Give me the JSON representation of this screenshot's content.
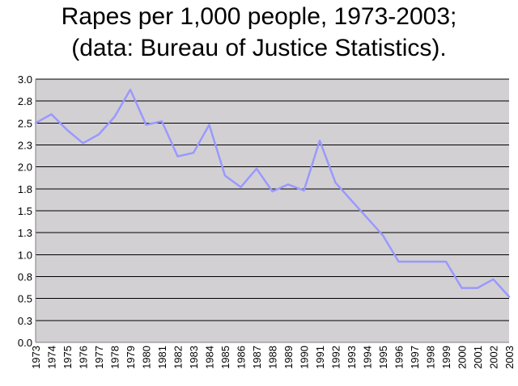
{
  "chart_data": {
    "type": "line",
    "title_lines": [
      "Rapes per 1,000 people, 1973-2003;",
      "(data: Bureau of Justice Statistics)."
    ],
    "xlabel": "",
    "ylabel": "",
    "x": [
      1973,
      1974,
      1975,
      1976,
      1977,
      1978,
      1979,
      1980,
      1981,
      1982,
      1983,
      1984,
      1985,
      1986,
      1987,
      1988,
      1989,
      1990,
      1991,
      1992,
      1993,
      1994,
      1995,
      1996,
      1997,
      1998,
      1999,
      2000,
      2001,
      2002,
      2003
    ],
    "x_tick_labels": [
      "1973",
      "1974",
      "1975",
      "1976",
      "1977",
      "1978",
      "1979",
      "1980",
      "1981",
      "1982",
      "1983",
      "1984",
      "1985",
      "1986",
      "1987",
      "1988",
      "1989",
      "1990",
      "1991",
      "1992",
      "1993",
      "1994",
      "1995",
      "1996",
      "1997",
      "1998",
      "1999",
      "2000",
      "2001",
      "2002",
      "2003"
    ],
    "y_tick_values": [
      0.0,
      0.25,
      0.5,
      0.75,
      1.0,
      1.25,
      1.5,
      1.75,
      2.0,
      2.25,
      2.5,
      2.75,
      3.0
    ],
    "y_tick_labels": [
      "0.0",
      "0.3",
      "0.5",
      "0.8",
      "1.0",
      "1.3",
      "1.5",
      "1.8",
      "2.0",
      "2.3",
      "2.5",
      "2.8",
      "3.0"
    ],
    "ylim": [
      0,
      3.0
    ],
    "grid": true,
    "legend": "none",
    "series": [
      {
        "values": [
          2.5,
          2.6,
          2.42,
          2.27,
          2.37,
          2.57,
          2.88,
          2.48,
          2.52,
          2.12,
          2.16,
          2.48,
          1.9,
          1.77,
          1.98,
          1.72,
          1.8,
          1.73,
          2.3,
          1.82,
          1.62,
          1.42,
          1.22,
          0.92,
          0.92,
          0.92,
          0.92,
          0.62,
          0.62,
          0.72,
          0.52
        ],
        "color": "#9999ff"
      }
    ],
    "colors": {
      "plot_background": "#d3d0d3",
      "gridline": "#000000",
      "series_line": "#9999ff",
      "axis": "#808080"
    }
  }
}
